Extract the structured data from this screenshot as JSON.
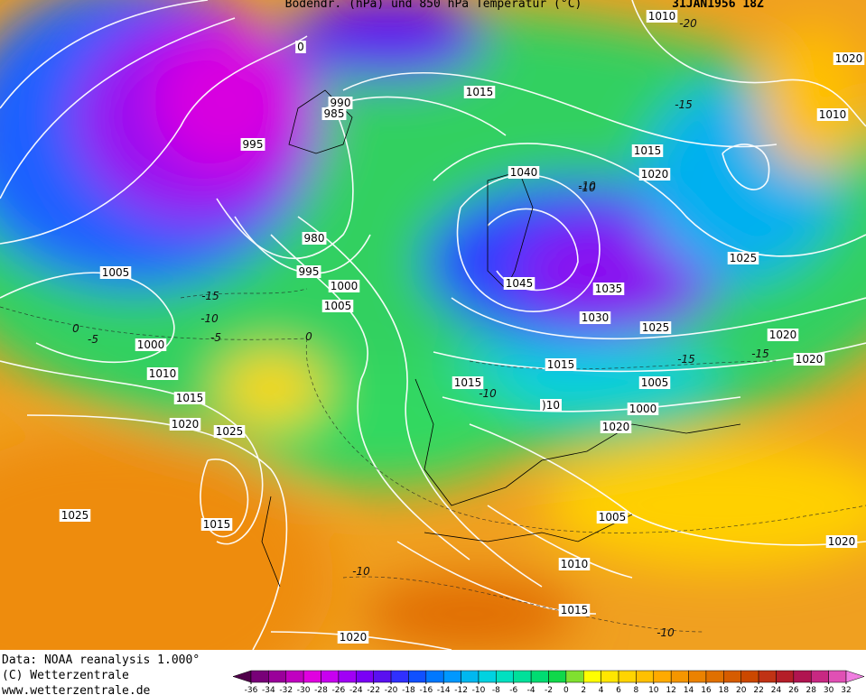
{
  "header": {
    "title": "Bodendr. (hPa) und 850 hPa Temperatur (°C)",
    "date": "31JAN1956 18Z"
  },
  "footer": [
    "Data: NOAA reanalysis 1.000°",
    "(C) Wetterzentrale",
    "www.wetterzentrale.de"
  ],
  "isobar_labels": [
    "1010",
    "1020",
    "1010",
    "0",
    "990",
    "985",
    "1015",
    "995",
    "1015",
    "1040",
    "1020",
    "980",
    "1025",
    "995",
    "1000",
    "1005",
    "1045",
    "1035",
    "1030",
    "1025",
    "1020",
    "1005",
    "1000",
    "1010",
    "1015",
    "1020",
    "1025",
    "1020",
    "1015",
    "1015",
    "1005",
    ")10",
    "1000",
    "1020",
    "1025",
    "1015",
    "1005",
    "1010",
    "1015",
    "1020",
    "1020"
  ],
  "isotherm_labels": [
    "-20",
    "-15",
    "-15",
    "-10",
    "-5",
    "0",
    "-5",
    "0",
    "-10",
    "-15",
    "-15",
    "-10",
    "-10",
    "-10",
    "-10"
  ],
  "colorbar": {
    "ticks": [
      -36,
      -34,
      -32,
      -30,
      -28,
      -26,
      -24,
      -22,
      -20,
      -18,
      -16,
      -14,
      -12,
      -10,
      -8,
      -6,
      -4,
      -2,
      0,
      2,
      4,
      6,
      8,
      10,
      12,
      14,
      16,
      18,
      20,
      22,
      24,
      26,
      28,
      30,
      32
    ],
    "colors": [
      "#50004a",
      "#780078",
      "#9a009a",
      "#c000c0",
      "#e000e0",
      "#c800f0",
      "#a000f5",
      "#7a00f5",
      "#5a10f0",
      "#3030ff",
      "#1050ff",
      "#0078ff",
      "#0098ff",
      "#00b8f0",
      "#00d2e0",
      "#00e0c0",
      "#00e09a",
      "#00dc72",
      "#10d84a",
      "#80e030",
      "#ffff00",
      "#ffe600",
      "#ffd400",
      "#ffc000",
      "#ffaa00",
      "#f59600",
      "#eb8200",
      "#e07000",
      "#d65c00",
      "#cc4800",
      "#c03214",
      "#b41e28",
      "#b01450",
      "#c82882",
      "#e050b4",
      "#f07ee0"
    ]
  }
}
